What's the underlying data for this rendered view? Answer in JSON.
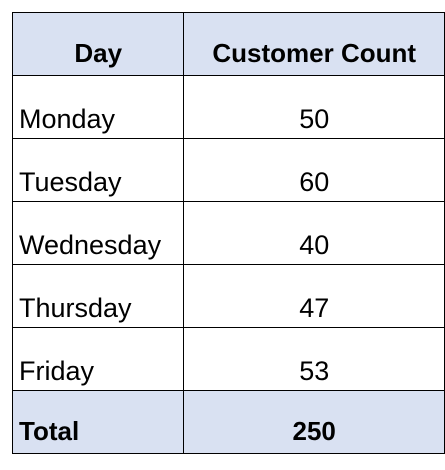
{
  "table": {
    "headers": {
      "day": "Day",
      "count": "Customer Count"
    },
    "rows": [
      {
        "day": "Monday",
        "count": "50"
      },
      {
        "day": "Tuesday",
        "count": "60"
      },
      {
        "day": "Wednesday",
        "count": "40"
      },
      {
        "day": "Thursday",
        "count": "47"
      },
      {
        "day": "Friday",
        "count": "53"
      }
    ],
    "total": {
      "label": "Total",
      "value": "250"
    }
  },
  "colors": {
    "header_fill": "#d9e1f2",
    "border": "#000000"
  }
}
